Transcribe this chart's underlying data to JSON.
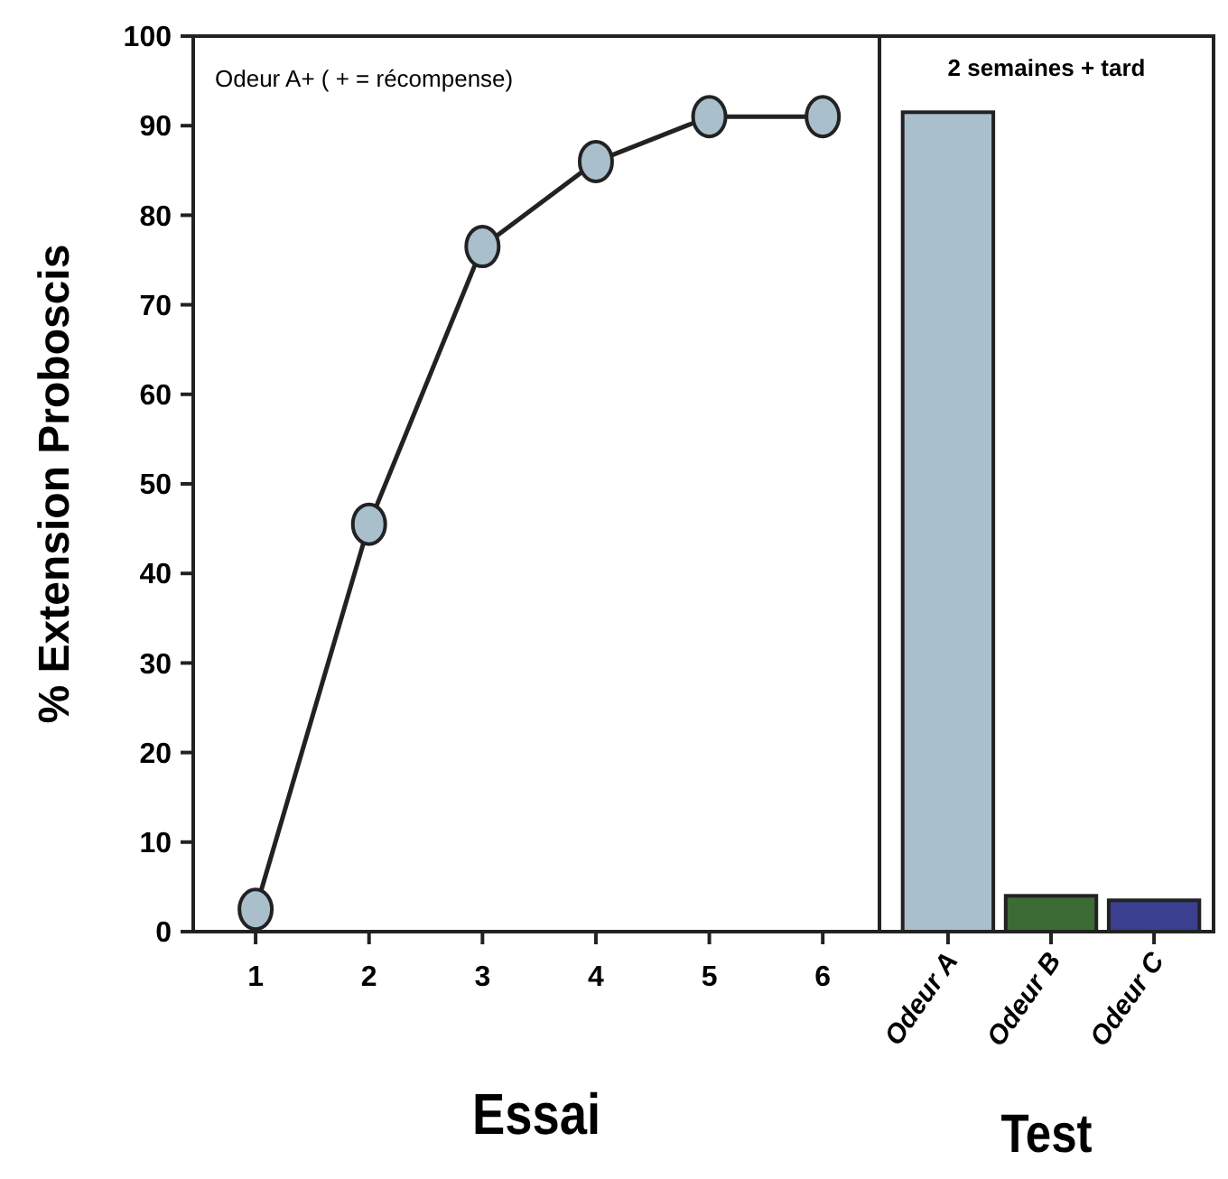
{
  "chart_data": [
    {
      "type": "line",
      "title": "Odeur A+ (   + = récompense)",
      "xlabel": "Essai",
      "ylabel": "% Extension Proboscis",
      "x": [
        1,
        2,
        3,
        4,
        5,
        6
      ],
      "xlim": [
        0.45,
        6.5
      ],
      "xticks": [
        1,
        2,
        3,
        4,
        5,
        6
      ],
      "ylim": [
        0,
        100
      ],
      "yticks": [
        0,
        10,
        20,
        30,
        40,
        50,
        60,
        70,
        80,
        90,
        100
      ],
      "marker": "circle",
      "line_style": "solid",
      "series": [
        {
          "color": "#a9bfcc",
          "values": [
            2.5,
            45.5,
            76.5,
            86,
            91,
            91
          ]
        }
      ]
    },
    {
      "type": "bar",
      "title": "2 semaines + tard",
      "xlabel": "Test",
      "categories": [
        "Odeur A",
        "Odeur B",
        "Odeur C"
      ],
      "ylim": [
        0,
        100
      ],
      "tick_labels": "x",
      "values": [
        91.5,
        4,
        3.5
      ],
      "colors": [
        "#a9bfcc",
        "#3d6b35",
        "#3a3f8f"
      ]
    }
  ]
}
